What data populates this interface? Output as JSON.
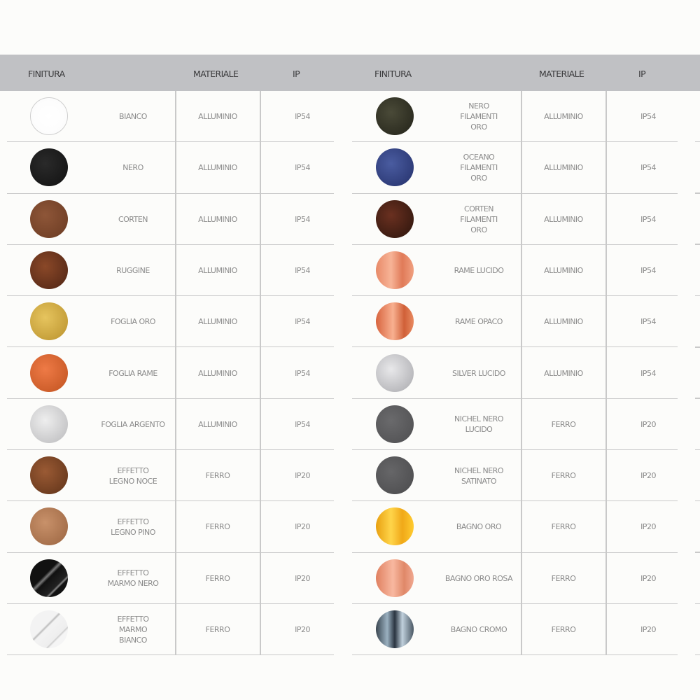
{
  "headers": {
    "finitura": "FINITURA",
    "materiale": "MATERIALE",
    "ip": "IP"
  },
  "left": [
    {
      "name": "BIANCO",
      "materiale": "ALLUMINIO",
      "ip": "IP54",
      "swatch": "radial-gradient(circle,#ffffff,#fbfbfb)",
      "border": "#cfcfcf"
    },
    {
      "name": "NERO",
      "materiale": "ALLUMINIO",
      "ip": "IP54",
      "swatch": "radial-gradient(circle at 40% 40%,#2a2a2a,#111)"
    },
    {
      "name": "CORTEN",
      "materiale": "ALLUMINIO",
      "ip": "IP54",
      "swatch": "radial-gradient(circle at 40% 40%,#8e5638,#6a3a22)"
    },
    {
      "name": "RUGGINE",
      "materiale": "ALLUMINIO",
      "ip": "IP54",
      "swatch": "radial-gradient(circle at 40% 40%,#8a4828,#4e2414)"
    },
    {
      "name": "FOGLIA ORO",
      "materiale": "ALLUMINIO",
      "ip": "IP54",
      "swatch": "radial-gradient(circle at 40% 40%,#e6c45e,#b9912c)"
    },
    {
      "name": "FOGLIA RAME",
      "materiale": "ALLUMINIO",
      "ip": "IP54",
      "swatch": "radial-gradient(circle at 40% 40%,#ee7a46,#c0521f)"
    },
    {
      "name": "FOGLIA ARGENTO",
      "materiale": "ALLUMINIO",
      "ip": "IP54",
      "swatch": "radial-gradient(circle at 40% 40%,#eeeeee,#b9b9bb)"
    },
    {
      "name": "EFFETTO\nLEGNO NOCE",
      "materiale": "FERRO",
      "ip": "IP20",
      "swatch": "radial-gradient(circle at 40% 40%,#9a5a34,#5e3218)"
    },
    {
      "name": "EFFETTO\nLEGNO PINO",
      "materiale": "FERRO",
      "ip": "IP20",
      "swatch": "radial-gradient(circle at 40% 40%,#c8916a,#9a6440)"
    },
    {
      "name": "EFFETTO\nMARMO NERO",
      "materiale": "FERRO",
      "ip": "IP20",
      "swatch": "linear-gradient(135deg,#111 40%,#777 45%,#111 50%,#222 70%,#888 73%,#111 76%)"
    },
    {
      "name": "EFFETTO\nMARMO\nBIANCO",
      "materiale": "FERRO",
      "ip": "IP20",
      "swatch": "linear-gradient(135deg,#f3f3f3 40%,#bbb 43%,#f3f3f3 46%,#eee 70%,#ccc 72%,#f5f5f5 75%)"
    }
  ],
  "right": [
    {
      "name": "NERO\nFILAMENTI\nORO",
      "materiale": "ALLUMINIO",
      "ip": "IP54",
      "swatch": "radial-gradient(circle at 40% 40%,#4a4a38,#222218)"
    },
    {
      "name": "OCEANO\nFILAMENTI\nORO",
      "materiale": "ALLUMINIO",
      "ip": "IP54",
      "swatch": "radial-gradient(circle at 40% 40%,#4a5ca0,#24306a)"
    },
    {
      "name": "CORTEN\nFILAMENTI\nORO",
      "materiale": "ALLUMINIO",
      "ip": "IP54",
      "swatch": "radial-gradient(circle at 40% 40%,#6a3020,#2a140c)"
    },
    {
      "name": "RAME LUCIDO",
      "materiale": "ALLUMINIO",
      "ip": "IP54",
      "swatch": "linear-gradient(90deg,#e88a68,#f7b497 40%,#e07a58 70%,#f0a080)"
    },
    {
      "name": "RAME OPACO",
      "materiale": "ALLUMINIO",
      "ip": "IP54",
      "swatch": "linear-gradient(90deg,#d8643e,#f8b090 45%,#d06038 75%,#e88a60)"
    },
    {
      "name": "SILVER LUCIDO",
      "materiale": "ALLUMINIO",
      "ip": "IP54",
      "swatch": "radial-gradient(circle at 40% 40%,#e8e8ea,#a8a8ac)"
    },
    {
      "name": "NICHEL NERO\nLUCIDO",
      "materiale": "FERRO",
      "ip": "IP20",
      "swatch": "radial-gradient(circle at 40% 40%,#6a6a6c,#4e4e50)"
    },
    {
      "name": "NICHEL NERO\nSATINATO",
      "materiale": "FERRO",
      "ip": "IP20",
      "swatch": "radial-gradient(circle at 40% 40%,#666668,#4a4a4c)"
    },
    {
      "name": "BAGNO ORO",
      "materiale": "FERRO",
      "ip": "IP20",
      "swatch": "linear-gradient(90deg,#e8a010,#ffd54a 40%,#f0a818 70%,#ffcc30)"
    },
    {
      "name": "BAGNO ORO ROSA",
      "materiale": "FERRO",
      "ip": "IP20",
      "swatch": "linear-gradient(90deg,#e08060,#f8b8a0 45%,#e08868 75%,#f0a890)"
    },
    {
      "name": "BAGNO CROMO",
      "materiale": "FERRO",
      "ip": "IP20",
      "swatch": "linear-gradient(90deg,#3a4650,#9ab0c0 30%,#2a3440 50%,#c0d0dc 70%,#4a5864)"
    }
  ]
}
